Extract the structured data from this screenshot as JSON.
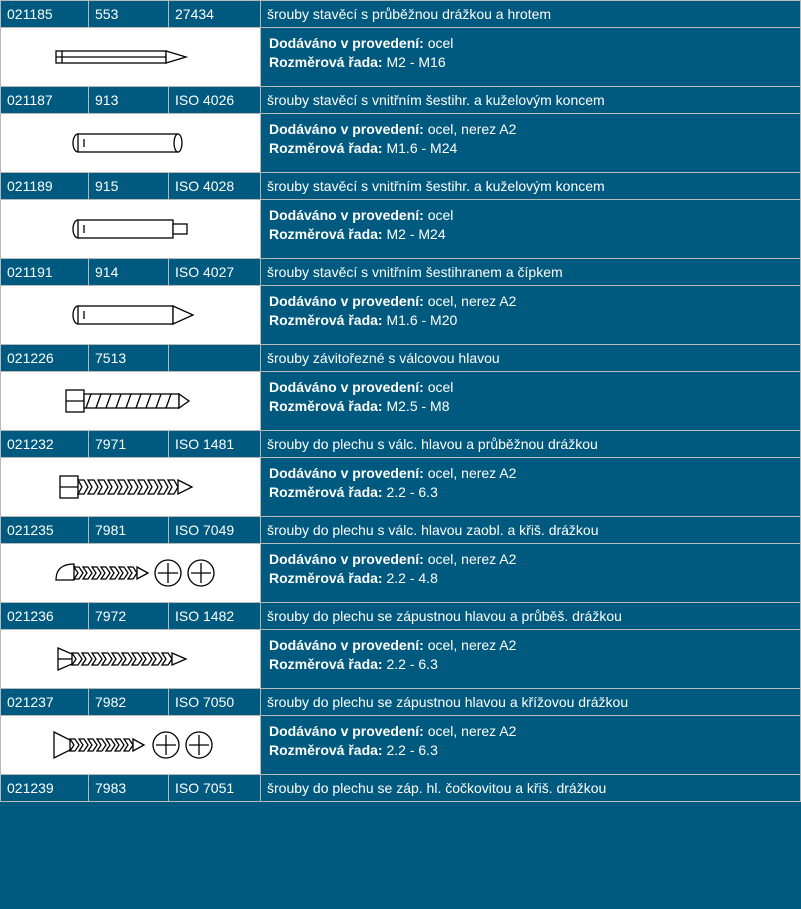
{
  "labels": {
    "provedeni": "Dodáváno v provedení:",
    "rada": "Rozměrová řada:"
  },
  "rows": [
    {
      "code": "021185",
      "din": "553",
      "iso": "27434",
      "desc": "šrouby stavěcí s průběžnou drážkou a hrotem",
      "mat": "ocel",
      "size": "M2 - M16",
      "icon": "slot-point"
    },
    {
      "code": "021187",
      "din": "913",
      "iso": "ISO 4026",
      "desc": "šrouby stavěcí s vnitřním šestihr. a kuželovým koncem",
      "mat": "ocel, nerez A2",
      "size": "M1.6 - M24",
      "icon": "hex-flat"
    },
    {
      "code": "021189",
      "din": "915",
      "iso": "ISO 4028",
      "desc": "šrouby stavěcí s vnitřním šestihr. a kuželovým koncem",
      "mat": "ocel",
      "size": "M2 - M24",
      "icon": "hex-dog"
    },
    {
      "code": "021191",
      "din": "914",
      "iso": "ISO 4027",
      "desc": "šrouby stavěcí s vnitřním šestihranem a čípkem",
      "mat": "ocel, nerez A2",
      "size": "M1.6 - M20",
      "icon": "hex-point"
    },
    {
      "code": "021226",
      "din": "7513",
      "iso": "",
      "desc": "šrouby závitořezné s válcovou hlavou",
      "mat": "ocel",
      "size": "M2.5 - M8",
      "icon": "thread-cyl"
    },
    {
      "code": "021232",
      "din": "7971",
      "iso": "ISO 1481",
      "desc": "šrouby do plechu s válc. hlavou a průběžnou drážkou",
      "mat": "ocel, nerez A2",
      "size": "2.2 - 6.3",
      "icon": "sheet-cyl-slot"
    },
    {
      "code": "021235",
      "din": "7981",
      "iso": "ISO 7049",
      "desc": "šrouby do plechu s válc. hlavou zaobl. a křiš. drážkou",
      "mat": "ocel, nerez A2",
      "size": "2.2 - 4.8",
      "icon": "sheet-pan-cross"
    },
    {
      "code": "021236",
      "din": "7972",
      "iso": "ISO 1482",
      "desc": "šrouby do plechu se zápustnou hlavou a průběš. drážkou",
      "mat": "ocel, nerez A2",
      "size": "2.2 - 6.3",
      "icon": "sheet-csk-slot"
    },
    {
      "code": "021237",
      "din": "7982",
      "iso": "ISO 7050",
      "desc": "šrouby do plechu se zápustnou hlavou a křížovou drážkou",
      "mat": "ocel, nerez A2",
      "size": "2.2 - 6.3",
      "icon": "sheet-csk-cross"
    },
    {
      "code": "021239",
      "din": "7983",
      "iso": "ISO 7051",
      "desc": "šrouby do plechu se záp. hl. čočkovitou a křiš. drážkou",
      "mat": null,
      "size": null,
      "icon": null
    }
  ],
  "svg": {
    "stroke": "#000000",
    "fill": "#ffffff",
    "stroke_width": 1.3
  }
}
